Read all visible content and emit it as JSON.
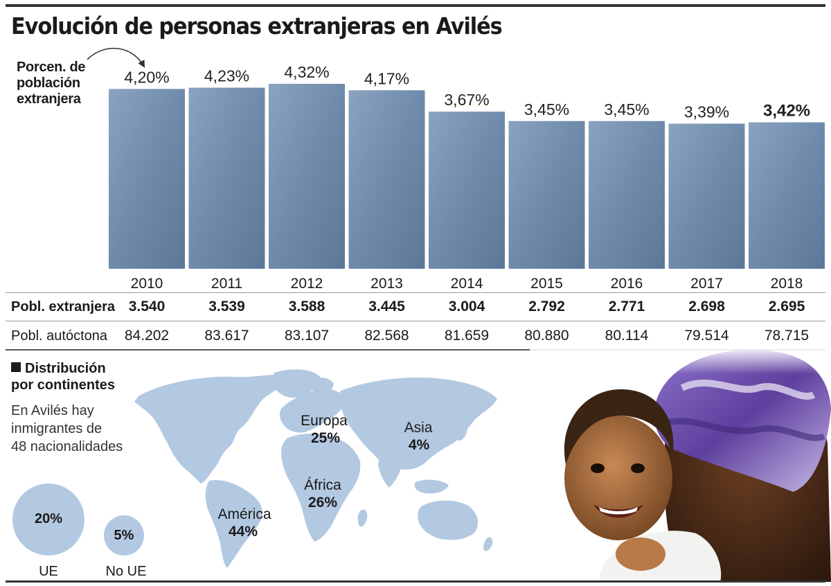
{
  "title": "Evolución de personas extranjeras en Avilés",
  "chart_data": {
    "type": "bar",
    "ylabel": "Porcen. de\npoblación\nextranjera",
    "categories": [
      "2010",
      "2011",
      "2012",
      "2013",
      "2014",
      "2015",
      "2016",
      "2017",
      "2018"
    ],
    "values": [
      4.2,
      4.23,
      4.32,
      4.17,
      3.67,
      3.45,
      3.45,
      3.39,
      3.42
    ],
    "value_labels": [
      "4,20%",
      "4,23%",
      "4,32%",
      "4,17%",
      "3,67%",
      "3,45%",
      "3,45%",
      "3,39%",
      "3,42%"
    ],
    "bar_color": "#7d97b5"
  },
  "table": {
    "rows": [
      {
        "label": "Pobl. extranjera",
        "values": [
          "3.540",
          "3.539",
          "3.588",
          "3.445",
          "3.004",
          "2.792",
          "2.771",
          "2.698",
          "2.695"
        ]
      },
      {
        "label": "Pobl. autóctona",
        "values": [
          "84.202",
          "83.617",
          "83.107",
          "82.568",
          "81.659",
          "80.880",
          "80.114",
          "79.514",
          "78.715"
        ]
      }
    ]
  },
  "distribution": {
    "heading": "Distribución\npor continentes",
    "text": "En Avilés hay\ninmigrantes de\n48 nacionalidades",
    "map_color": "#b3c9e2",
    "continents": [
      {
        "name": "Europa",
        "pct": "25%"
      },
      {
        "name": "Asia",
        "pct": "4%"
      },
      {
        "name": "África",
        "pct": "26%"
      },
      {
        "name": "América",
        "pct": "44%"
      }
    ],
    "circles": [
      {
        "value": "20%",
        "label": "UE"
      },
      {
        "value": "5%",
        "label": "No UE"
      }
    ]
  }
}
